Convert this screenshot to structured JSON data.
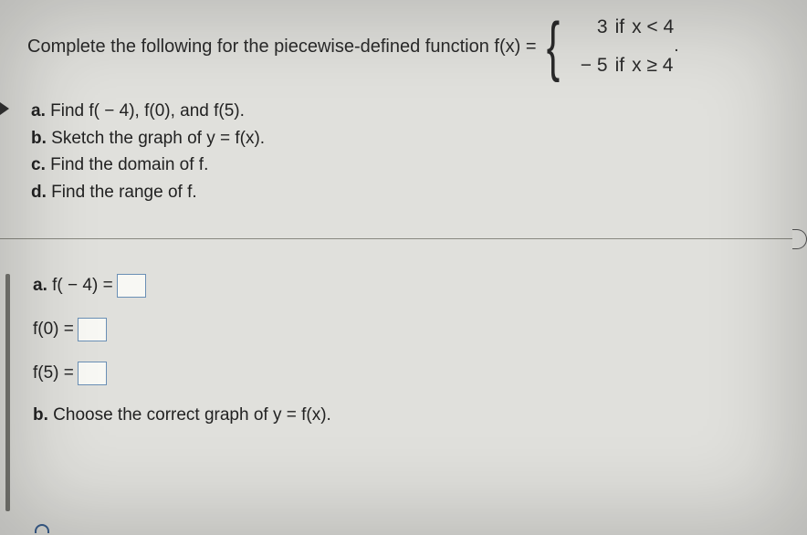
{
  "header": {
    "intro": "Complete the following for the piecewise-defined function f(x) =",
    "piece1_value": "3",
    "piece1_if": "if",
    "piece1_cond": "x < 4",
    "piece2_value": "− 5",
    "piece2_if": "if",
    "piece2_cond": "x ≥ 4",
    "dot": "."
  },
  "parts": {
    "a_label": "a.",
    "a_text": " Find f( − 4), f(0), and f(5).",
    "b_label": "b.",
    "b_text": " Sketch the graph of y = f(x).",
    "c_label": "c.",
    "c_text": " Find the domain of f.",
    "d_label": "d.",
    "d_text": " Find the range of f."
  },
  "answers": {
    "a_prefix": "a.",
    "f_neg4": " f( − 4) = ",
    "f_0": "f(0) = ",
    "f_5": "f(5) = ",
    "b_prefix": "b.",
    "b_text": " Choose the correct graph of y = f(x)."
  },
  "colors": {
    "background": "#e0e0dc",
    "text": "#2a2a2a",
    "input_border": "#6a8fb5",
    "divider": "#888880"
  }
}
